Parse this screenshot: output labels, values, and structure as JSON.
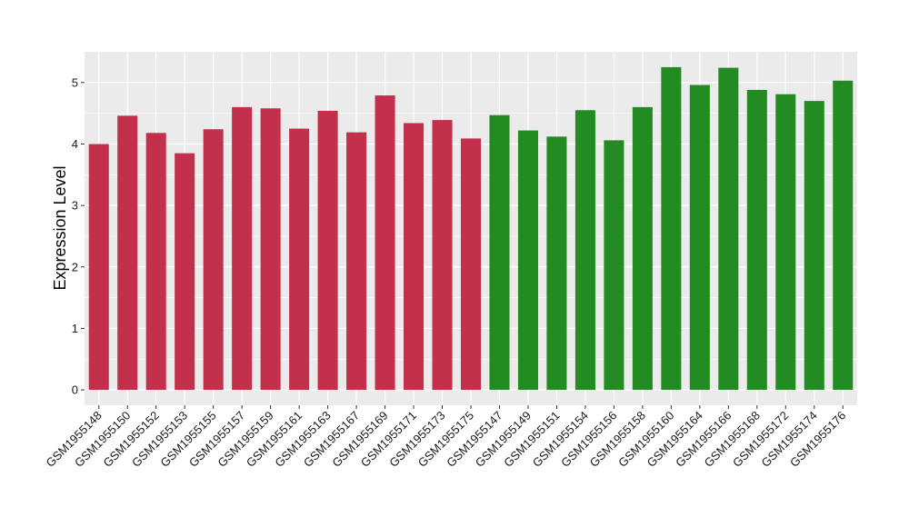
{
  "chart_data": {
    "type": "bar",
    "ylabel": "Expression Level",
    "xlabel": "",
    "ylim": [
      -0.25,
      5.5
    ],
    "y_ticks": [
      0,
      1,
      2,
      3,
      4,
      5
    ],
    "grid": true,
    "legend": "none",
    "panel_background": "#ebebeb",
    "gridline_color": "#ffffff",
    "categories": [
      "GSM1955148",
      "GSM1955150",
      "GSM1955152",
      "GSM1955153",
      "GSM1955155",
      "GSM1955157",
      "GSM1955159",
      "GSM1955161",
      "GSM1955163",
      "GSM1955167",
      "GSM1955169",
      "GSM1955171",
      "GSM1955173",
      "GSM1955175",
      "GSM1955147",
      "GSM1955149",
      "GSM1955151",
      "GSM1955154",
      "GSM1955156",
      "GSM1955158",
      "GSM1955160",
      "GSM1955164",
      "GSM1955166",
      "GSM1955168",
      "GSM1955172",
      "GSM1955174",
      "GSM1955176"
    ],
    "values": [
      4.0,
      4.46,
      4.18,
      3.85,
      4.24,
      4.6,
      4.58,
      4.25,
      4.54,
      4.19,
      4.79,
      4.34,
      4.39,
      4.09,
      4.47,
      4.22,
      4.12,
      4.55,
      4.06,
      4.6,
      5.25,
      4.96,
      5.24,
      4.88,
      4.81,
      4.7,
      5.03
    ],
    "bar_colors": [
      "#c3304b",
      "#c3304b",
      "#c3304b",
      "#c3304b",
      "#c3304b",
      "#c3304b",
      "#c3304b",
      "#c3304b",
      "#c3304b",
      "#c3304b",
      "#c3304b",
      "#c3304b",
      "#c3304b",
      "#c3304b",
      "#228b22",
      "#228b22",
      "#228b22",
      "#228b22",
      "#228b22",
      "#228b22",
      "#228b22",
      "#228b22",
      "#228b22",
      "#228b22",
      "#228b22",
      "#228b22",
      "#228b22"
    ]
  }
}
